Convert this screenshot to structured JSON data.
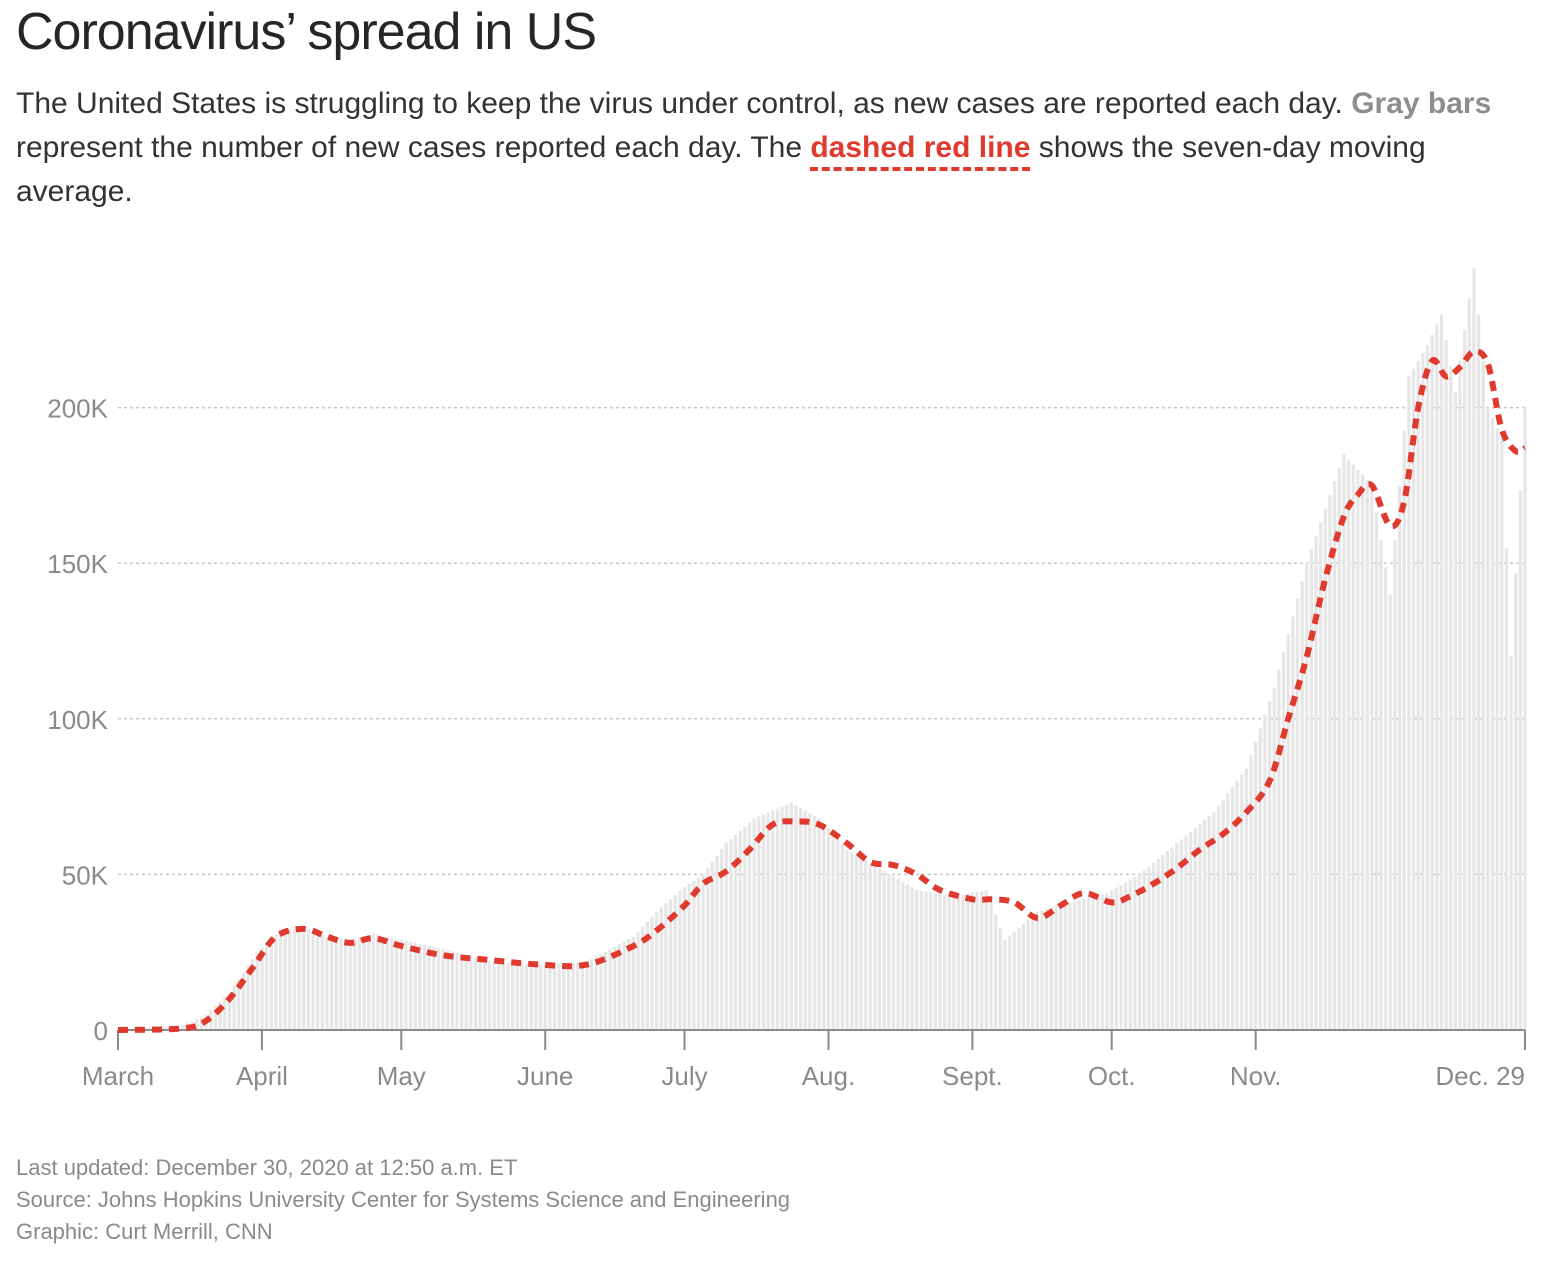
{
  "header": {
    "title": "Coronavirus’ spread in US",
    "desc_part1": "The United States is struggling to keep the virus under control, as new cases are reported each day. ",
    "desc_gray": "Gray bars",
    "desc_part2": " represent the number of new cases reported each day. The ",
    "desc_red": "dashed red line",
    "desc_part3": " shows the seven-day moving average."
  },
  "colors": {
    "bars": "#e6e6e6",
    "line": "#e03a2f",
    "grid": "#c8c8c8",
    "axis": "#8a8a8a",
    "text": "#262626"
  },
  "chart_data": {
    "type": "bar",
    "title": "Coronavirus’ spread in US",
    "ylim": [
      0,
      250000
    ],
    "ytick_values": [
      0,
      50000,
      100000,
      150000,
      200000
    ],
    "ytick_labels": [
      "0",
      "50K",
      "100K",
      "150K",
      "200K"
    ],
    "grid": "horizontal dotted",
    "x_start": "2020-03-01",
    "x_end": "2020-12-29",
    "xtick_dates": [
      "2020-03-01",
      "2020-04-01",
      "2020-05-01",
      "2020-06-01",
      "2020-07-01",
      "2020-08-01",
      "2020-09-01",
      "2020-10-01",
      "2020-11-01",
      "2020-12-29"
    ],
    "xtick_labels": [
      "March",
      "April",
      "May",
      "June",
      "July",
      "Aug.",
      "Sept.",
      "Oct.",
      "Nov.",
      "Dec. 29"
    ],
    "series": [
      {
        "name": "New cases reported each day",
        "kind": "bar",
        "color": "#e6e6e6",
        "dates": [
          "2020-03-01",
          "2020-03-15",
          "2020-03-20",
          "2020-03-25",
          "2020-03-31",
          "2020-04-05",
          "2020-04-10",
          "2020-04-15",
          "2020-04-20",
          "2020-04-25",
          "2020-05-01",
          "2020-05-10",
          "2020-05-20",
          "2020-06-01",
          "2020-06-10",
          "2020-06-20",
          "2020-06-25",
          "2020-07-01",
          "2020-07-05",
          "2020-07-10",
          "2020-07-16",
          "2020-07-24",
          "2020-07-30",
          "2020-08-05",
          "2020-08-12",
          "2020-08-20",
          "2020-08-28",
          "2020-09-04",
          "2020-09-08",
          "2020-09-15",
          "2020-09-22",
          "2020-09-30",
          "2020-10-07",
          "2020-10-15",
          "2020-10-23",
          "2020-10-30",
          "2020-11-05",
          "2020-11-12",
          "2020-11-20",
          "2020-11-26",
          "2020-11-30",
          "2020-12-04",
          "2020-12-08",
          "2020-12-11",
          "2020-12-14",
          "2020-12-18",
          "2020-12-21",
          "2020-12-24",
          "2020-12-26",
          "2020-12-29"
        ],
        "values": [
          0,
          1500,
          5000,
          12000,
          25000,
          32000,
          33000,
          30000,
          29000,
          31000,
          29000,
          26000,
          22000,
          21000,
          22000,
          30000,
          38000,
          46000,
          50000,
          60000,
          68000,
          73000,
          68000,
          58000,
          52000,
          45000,
          43000,
          45000,
          29000,
          38000,
          41000,
          44000,
          50000,
          60000,
          70000,
          84000,
          110000,
          150000,
          185000,
          175000,
          140000,
          210000,
          220000,
          230000,
          205000,
          245000,
          200000,
          190000,
          120000,
          200000
        ]
      },
      {
        "name": "Seven-day moving average",
        "kind": "line",
        "style": "dashed",
        "color": "#e03a2f",
        "dates": [
          "2020-03-01",
          "2020-03-15",
          "2020-03-20",
          "2020-03-25",
          "2020-03-30",
          "2020-04-04",
          "2020-04-10",
          "2020-04-15",
          "2020-04-20",
          "2020-04-25",
          "2020-05-01",
          "2020-05-10",
          "2020-05-20",
          "2020-05-31",
          "2020-06-10",
          "2020-06-20",
          "2020-06-25",
          "2020-07-01",
          "2020-07-05",
          "2020-07-10",
          "2020-07-15",
          "2020-07-20",
          "2020-07-25",
          "2020-07-30",
          "2020-08-05",
          "2020-08-10",
          "2020-08-15",
          "2020-08-20",
          "2020-08-25",
          "2020-09-01",
          "2020-09-05",
          "2020-09-10",
          "2020-09-15",
          "2020-09-20",
          "2020-09-25",
          "2020-10-01",
          "2020-10-05",
          "2020-10-10",
          "2020-10-15",
          "2020-10-20",
          "2020-10-25",
          "2020-10-30",
          "2020-11-04",
          "2020-11-08",
          "2020-11-12",
          "2020-11-16",
          "2020-11-20",
          "2020-11-23",
          "2020-11-26",
          "2020-11-30",
          "2020-12-03",
          "2020-12-06",
          "2020-12-09",
          "2020-12-12",
          "2020-12-15",
          "2020-12-18",
          "2020-12-21",
          "2020-12-24",
          "2020-12-27",
          "2020-12-29"
        ],
        "values": [
          0,
          500,
          3000,
          10000,
          20000,
          30000,
          32500,
          30000,
          28000,
          29500,
          27000,
          24000,
          22500,
          21000,
          21000,
          27000,
          32000,
          40000,
          47000,
          51000,
          58000,
          66000,
          67000,
          66000,
          60000,
          54000,
          53000,
          50000,
          45000,
          42000,
          42000,
          41000,
          36000,
          40000,
          44000,
          41000,
          43000,
          47000,
          52000,
          58000,
          63000,
          70000,
          80000,
          100000,
          120000,
          145000,
          165000,
          172000,
          175000,
          162000,
          170000,
          200000,
          215000,
          210000,
          213000,
          218000,
          214000,
          193000,
          186000,
          187000
        ]
      }
    ],
    "legend": "none",
    "annotations": [
      "Last updated: December 30, 2020 at 12:50 a.m. ET",
      "Source: Johns Hopkins University Center for Systems Science and Engineering",
      "Graphic: Curt Merrill, CNN"
    ]
  },
  "footer": {
    "updated": "Last updated: December 30, 2020 at 12:50 a.m. ET",
    "source": "Source: Johns Hopkins University Center for Systems Science and Engineering",
    "credit": "Graphic: Curt Merrill, CNN"
  }
}
